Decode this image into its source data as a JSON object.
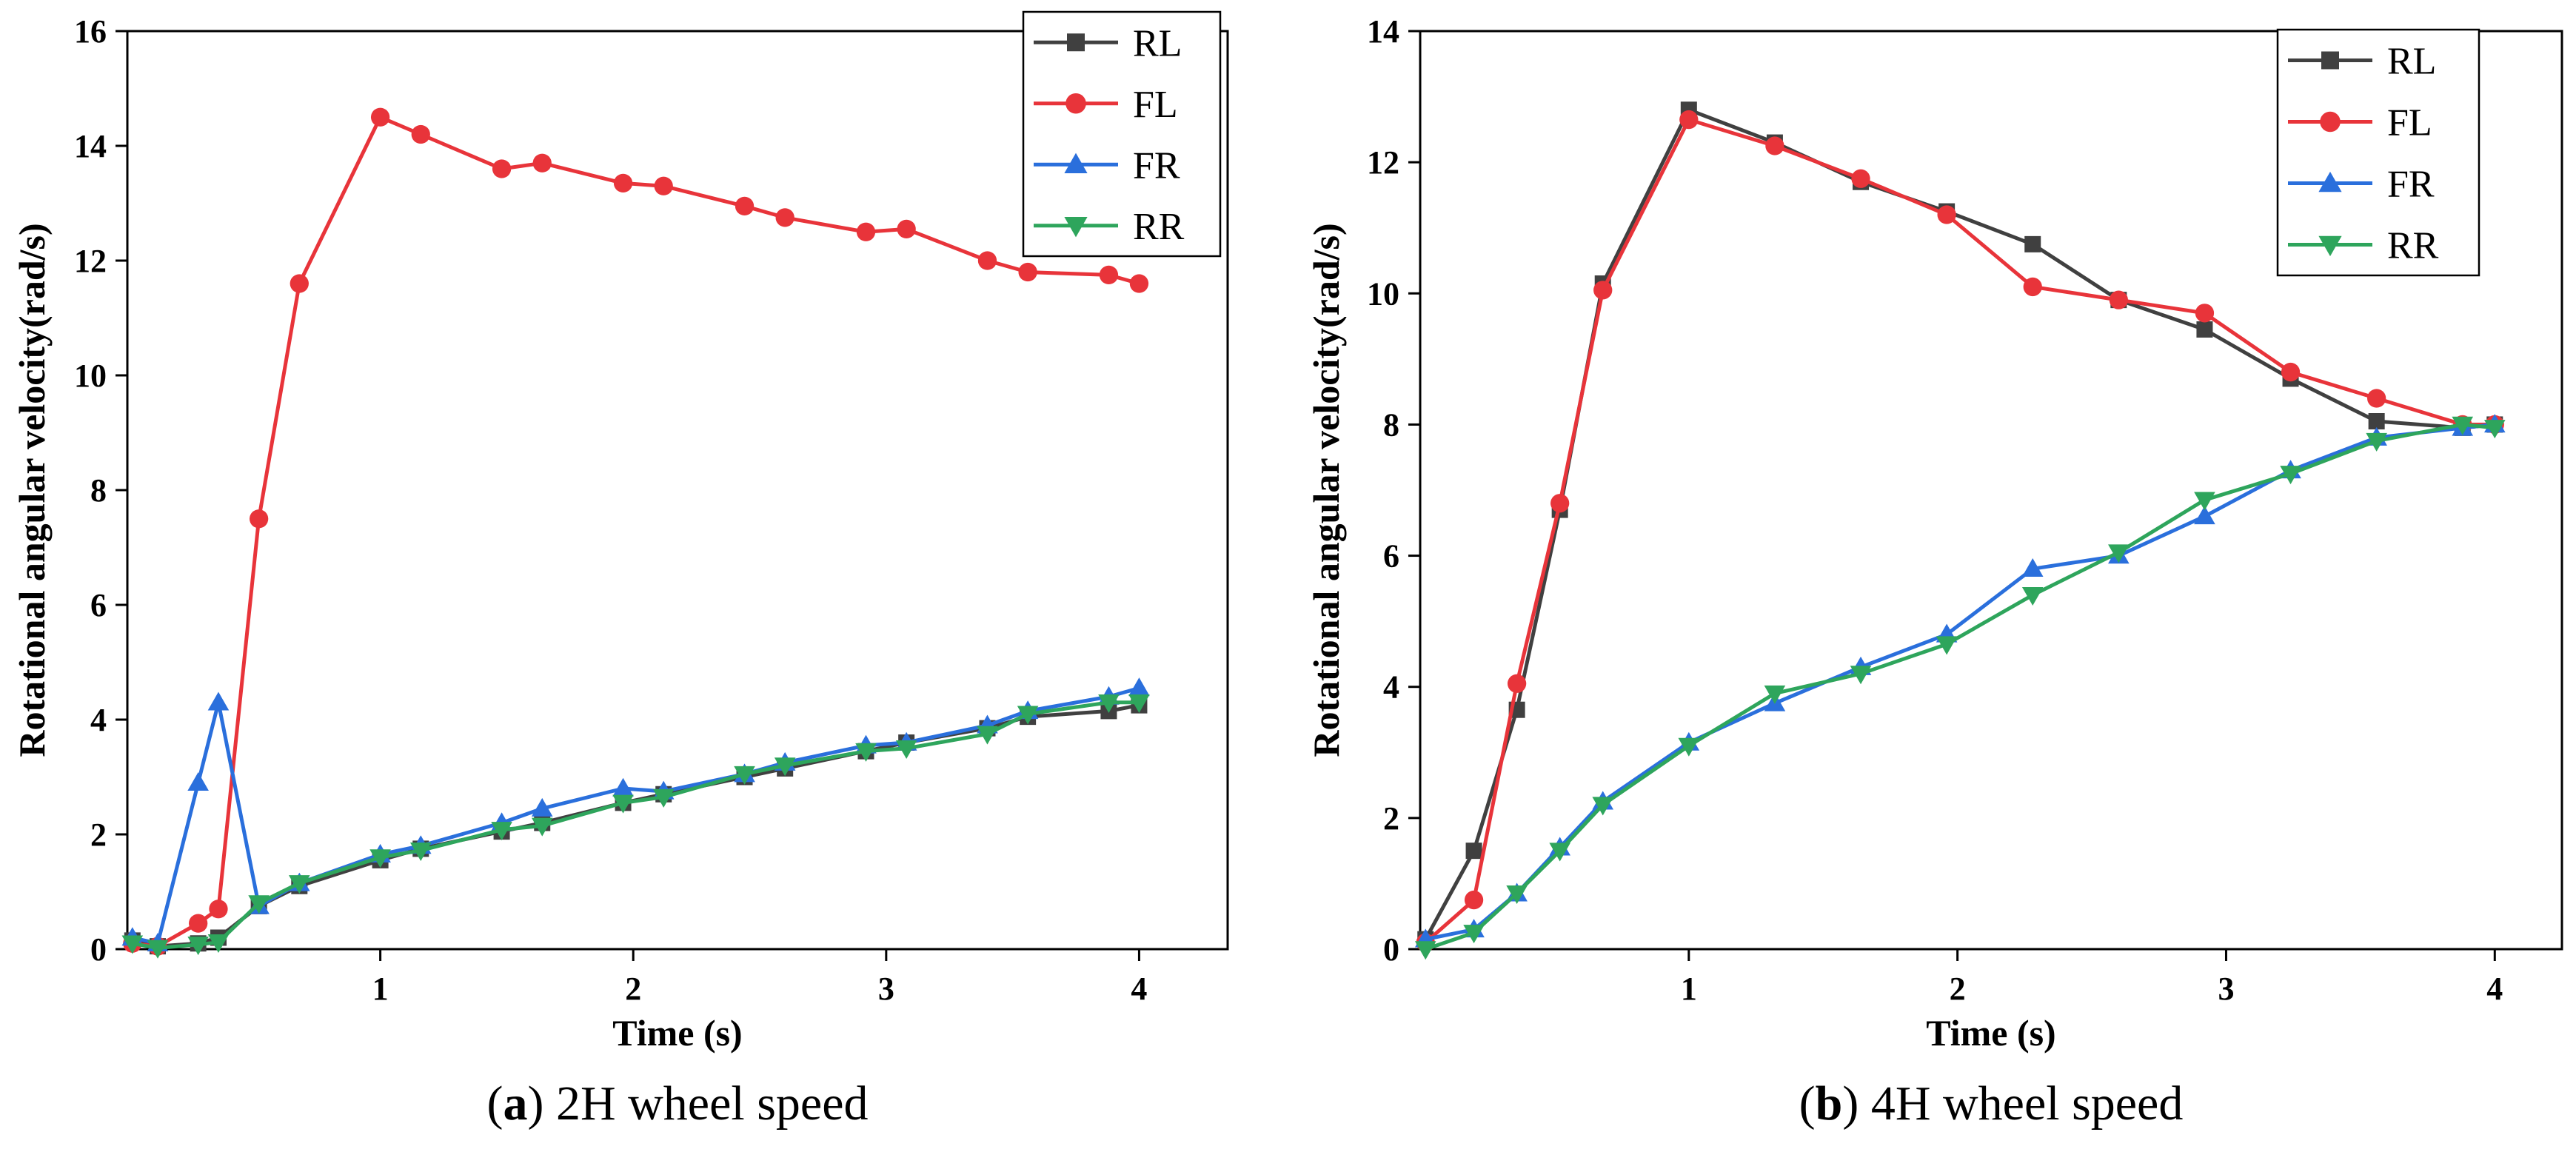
{
  "colors": {
    "RL": "#404040",
    "FL": "#e8343a",
    "FR": "#2a6fdc",
    "RR": "#2ea55c",
    "axis": "#000000"
  },
  "marker_icons": {
    "RL": "square-marker-icon",
    "FL": "circle-marker-icon",
    "FR": "triangle-up-marker-icon",
    "RR": "triangle-down-marker-icon"
  },
  "chart_data": [
    {
      "type": "line",
      "caption_letter": "a",
      "caption_text": " 2H wheel speed",
      "xlabel": "Time (s)",
      "ylabel": "Rotational angular velocity(rad/s)",
      "xlim": [
        0,
        4.35
      ],
      "ylim": [
        0,
        16
      ],
      "xticks": [
        1,
        2,
        3,
        4
      ],
      "yticks": [
        0,
        2,
        4,
        6,
        8,
        10,
        12,
        14,
        16
      ],
      "legend_position": "top-right",
      "grid": false,
      "series": [
        {
          "name": "RL",
          "marker": "square",
          "x": [
            0.02,
            0.12,
            0.28,
            0.36,
            0.52,
            0.68,
            1.0,
            1.16,
            1.48,
            1.64,
            1.96,
            2.12,
            2.44,
            2.6,
            2.92,
            3.08,
            3.4,
            3.56,
            3.88,
            4.0
          ],
          "y": [
            0.15,
            0.05,
            0.1,
            0.2,
            0.75,
            1.1,
            1.55,
            1.75,
            2.05,
            2.2,
            2.55,
            2.7,
            3.0,
            3.15,
            3.45,
            3.6,
            3.85,
            4.05,
            4.15,
            4.25
          ]
        },
        {
          "name": "FL",
          "marker": "circle",
          "x": [
            0.02,
            0.12,
            0.28,
            0.36,
            0.52,
            0.68,
            1.0,
            1.16,
            1.48,
            1.64,
            1.96,
            2.12,
            2.44,
            2.6,
            2.92,
            3.08,
            3.4,
            3.56,
            3.88,
            4.0
          ],
          "y": [
            0.1,
            0.05,
            0.45,
            0.7,
            7.5,
            11.6,
            14.5,
            14.2,
            13.6,
            13.7,
            13.35,
            13.3,
            12.95,
            12.75,
            12.5,
            12.55,
            12.0,
            11.8,
            11.75,
            11.6
          ]
        },
        {
          "name": "FR",
          "marker": "triangle-up",
          "x": [
            0.02,
            0.12,
            0.28,
            0.36,
            0.52,
            0.68,
            1.0,
            1.16,
            1.48,
            1.64,
            1.96,
            2.12,
            2.44,
            2.6,
            2.92,
            3.08,
            3.4,
            3.56,
            3.88,
            4.0
          ],
          "y": [
            0.2,
            0.1,
            2.9,
            4.3,
            0.75,
            1.15,
            1.65,
            1.8,
            2.2,
            2.45,
            2.8,
            2.75,
            3.05,
            3.25,
            3.55,
            3.6,
            3.9,
            4.15,
            4.4,
            4.55
          ]
        },
        {
          "name": "RR",
          "marker": "triangle-down",
          "x": [
            0.02,
            0.12,
            0.28,
            0.36,
            0.52,
            0.68,
            1.0,
            1.16,
            1.48,
            1.64,
            1.96,
            2.12,
            2.44,
            2.6,
            2.92,
            3.08,
            3.4,
            3.56,
            3.88,
            4.0
          ],
          "y": [
            0.1,
            0.02,
            0.08,
            0.12,
            0.8,
            1.15,
            1.6,
            1.72,
            2.08,
            2.15,
            2.55,
            2.65,
            3.05,
            3.2,
            3.45,
            3.5,
            3.75,
            4.1,
            4.3,
            4.3
          ]
        }
      ]
    },
    {
      "type": "line",
      "caption_letter": "b",
      "caption_text": " 4H wheel speed",
      "xlabel": "Time (s)",
      "ylabel": "Rotational angular velocity(rad/s)",
      "xlim": [
        0,
        4.25
      ],
      "ylim": [
        0,
        14
      ],
      "xticks": [
        1,
        2,
        3,
        4
      ],
      "yticks": [
        0,
        2,
        4,
        6,
        8,
        10,
        12,
        14
      ],
      "legend_position": "top-right",
      "grid": false,
      "series": [
        {
          "name": "RL",
          "marker": "square",
          "x": [
            0.02,
            0.2,
            0.36,
            0.52,
            0.68,
            1.0,
            1.32,
            1.64,
            1.96,
            2.28,
            2.6,
            2.92,
            3.24,
            3.56,
            3.88,
            4.0
          ],
          "y": [
            0.15,
            1.5,
            3.65,
            6.7,
            10.15,
            12.8,
            12.3,
            11.7,
            11.25,
            10.75,
            9.9,
            9.45,
            8.7,
            8.05,
            7.95,
            8.0
          ]
        },
        {
          "name": "FL",
          "marker": "circle",
          "x": [
            0.02,
            0.2,
            0.36,
            0.52,
            0.68,
            1.0,
            1.32,
            1.64,
            1.96,
            2.28,
            2.6,
            2.92,
            3.24,
            3.56,
            3.88,
            4.0
          ],
          "y": [
            0.1,
            0.75,
            4.05,
            6.8,
            10.05,
            12.65,
            12.25,
            11.75,
            11.2,
            10.1,
            9.9,
            9.7,
            8.8,
            8.4,
            8.0,
            8.0
          ]
        },
        {
          "name": "FR",
          "marker": "triangle-up",
          "x": [
            0.02,
            0.2,
            0.36,
            0.52,
            0.68,
            1.0,
            1.32,
            1.64,
            1.96,
            2.28,
            2.6,
            2.92,
            3.24,
            3.56,
            3.88,
            4.0
          ],
          "y": [
            0.15,
            0.3,
            0.85,
            1.55,
            2.25,
            3.15,
            3.75,
            4.3,
            4.8,
            5.8,
            6.0,
            6.6,
            7.3,
            7.8,
            7.95,
            8.0
          ]
        },
        {
          "name": "RR",
          "marker": "triangle-down",
          "x": [
            0.02,
            0.2,
            0.36,
            0.52,
            0.68,
            1.0,
            1.32,
            1.64,
            1.96,
            2.28,
            2.6,
            2.92,
            3.24,
            3.56,
            3.88,
            4.0
          ],
          "y": [
            0.0,
            0.25,
            0.85,
            1.5,
            2.2,
            3.1,
            3.9,
            4.2,
            4.65,
            5.4,
            6.05,
            6.85,
            7.25,
            7.75,
            8.0,
            7.95
          ]
        }
      ]
    }
  ]
}
